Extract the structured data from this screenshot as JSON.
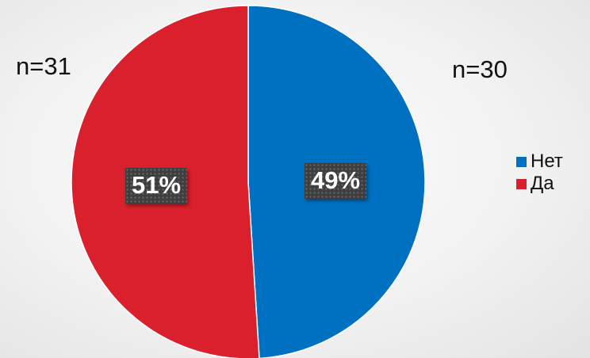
{
  "chart_data": {
    "type": "pie",
    "series": [
      {
        "name": "Нет",
        "value": 49,
        "label": "49%",
        "count_label": "n=30",
        "color": "#0070c0"
      },
      {
        "name": "Да",
        "value": 51,
        "label": "51%",
        "count_label": "n=31",
        "color": "#d9202c"
      }
    ],
    "legend": {
      "position": "right",
      "items": [
        {
          "label": "Нет",
          "color": "#0070c0"
        },
        {
          "label": "Да",
          "color": "#d9202c"
        }
      ]
    },
    "start_angle": "top",
    "direction": "clockwise"
  }
}
